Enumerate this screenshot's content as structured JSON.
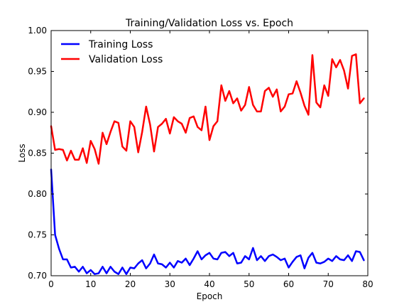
{
  "chart_data": {
    "type": "line",
    "title": "Training/Validation Loss vs. Epoch",
    "xlabel": "Epoch",
    "ylabel": "Loss",
    "xlim": [
      0,
      80
    ],
    "ylim": [
      0.7,
      1.0
    ],
    "xticks": [
      "0",
      "10",
      "20",
      "30",
      "40",
      "50",
      "60",
      "70",
      "80"
    ],
    "yticks": [
      "0.70",
      "0.75",
      "0.80",
      "0.85",
      "0.90",
      "0.95",
      "1.00"
    ],
    "xtick_values": [
      0,
      10,
      20,
      30,
      40,
      50,
      60,
      70,
      80
    ],
    "ytick_values": [
      0.7,
      0.75,
      0.8,
      0.85,
      0.9,
      0.95,
      1.0
    ],
    "grid": false,
    "legend_position": "top-left",
    "x": [
      0,
      1,
      2,
      3,
      4,
      5,
      6,
      7,
      8,
      9,
      10,
      11,
      12,
      13,
      14,
      15,
      16,
      17,
      18,
      19,
      20,
      21,
      22,
      23,
      24,
      25,
      26,
      27,
      28,
      29,
      30,
      31,
      32,
      33,
      34,
      35,
      36,
      37,
      38,
      39,
      40,
      41,
      42,
      43,
      44,
      45,
      46,
      47,
      48,
      49,
      50,
      51,
      52,
      53,
      54,
      55,
      56,
      57,
      58,
      59,
      60,
      61,
      62,
      63,
      64,
      65,
      66,
      67,
      68,
      69,
      70,
      71,
      72,
      73,
      74,
      75,
      76,
      77,
      78,
      79
    ],
    "series": [
      {
        "name": "Training Loss",
        "color": "#0000ff",
        "values": [
          0.83,
          0.75,
          0.733,
          0.72,
          0.72,
          0.71,
          0.711,
          0.705,
          0.711,
          0.703,
          0.707,
          0.702,
          0.703,
          0.711,
          0.703,
          0.711,
          0.705,
          0.702,
          0.71,
          0.702,
          0.71,
          0.709,
          0.715,
          0.719,
          0.709,
          0.715,
          0.726,
          0.715,
          0.714,
          0.71,
          0.716,
          0.71,
          0.718,
          0.716,
          0.721,
          0.713,
          0.721,
          0.73,
          0.72,
          0.725,
          0.728,
          0.721,
          0.72,
          0.728,
          0.729,
          0.724,
          0.728,
          0.715,
          0.716,
          0.724,
          0.72,
          0.734,
          0.719,
          0.724,
          0.718,
          0.724,
          0.726,
          0.723,
          0.719,
          0.721,
          0.71,
          0.717,
          0.723,
          0.725,
          0.709,
          0.722,
          0.728,
          0.716,
          0.715,
          0.717,
          0.721,
          0.718,
          0.724,
          0.72,
          0.719,
          0.725,
          0.718,
          0.73,
          0.729,
          0.719
        ]
      },
      {
        "name": "Validation Loss",
        "color": "#ff0000",
        "values": [
          0.883,
          0.854,
          0.855,
          0.854,
          0.841,
          0.853,
          0.842,
          0.842,
          0.856,
          0.838,
          0.865,
          0.855,
          0.837,
          0.875,
          0.861,
          0.876,
          0.889,
          0.887,
          0.858,
          0.853,
          0.889,
          0.882,
          0.851,
          0.876,
          0.907,
          0.885,
          0.852,
          0.882,
          0.886,
          0.892,
          0.874,
          0.894,
          0.889,
          0.886,
          0.875,
          0.893,
          0.895,
          0.882,
          0.878,
          0.907,
          0.866,
          0.883,
          0.889,
          0.933,
          0.914,
          0.926,
          0.911,
          0.917,
          0.902,
          0.909,
          0.931,
          0.909,
          0.901,
          0.901,
          0.926,
          0.93,
          0.919,
          0.928,
          0.901,
          0.907,
          0.922,
          0.923,
          0.938,
          0.924,
          0.908,
          0.897,
          0.97,
          0.912,
          0.906,
          0.933,
          0.92,
          0.965,
          0.955,
          0.964,
          0.951,
          0.929,
          0.969,
          0.971,
          0.911,
          0.917
        ]
      }
    ]
  }
}
